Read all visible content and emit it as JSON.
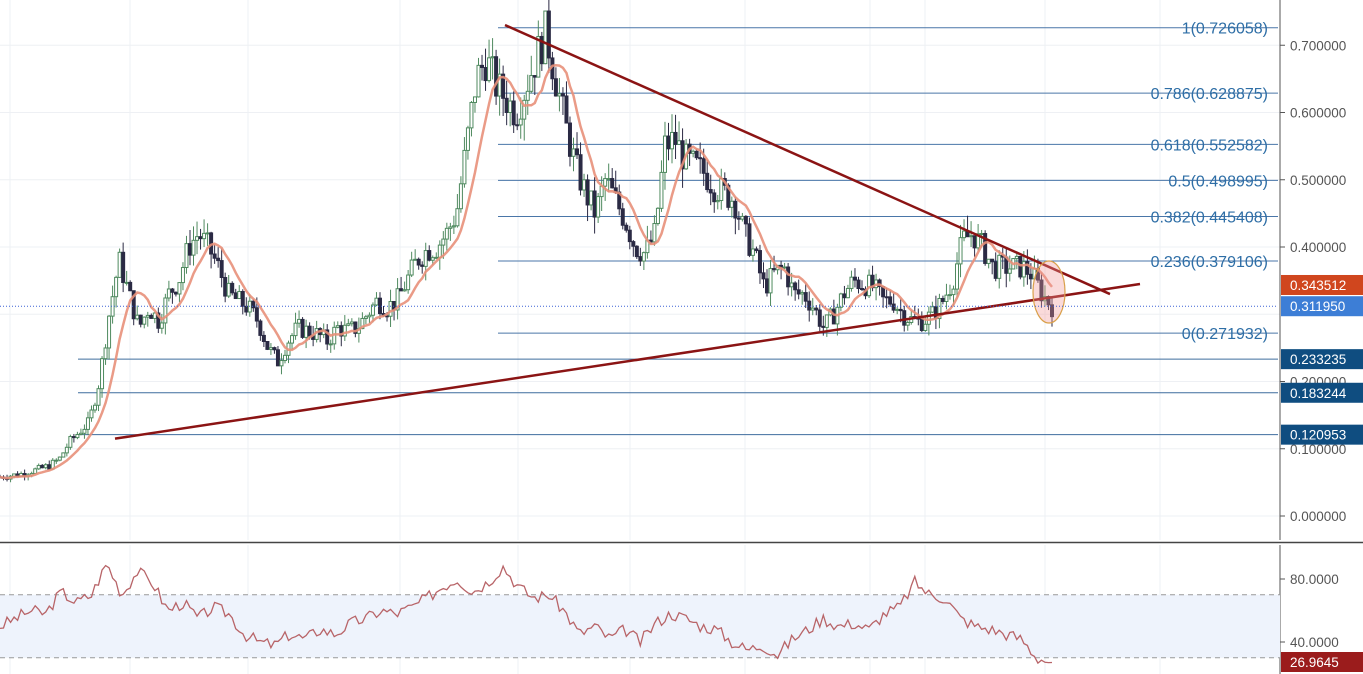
{
  "chart_data": [
    {
      "type": "candlestick",
      "title": "",
      "xlabel": "",
      "ylabel": "",
      "ylim": [
        -0.04,
        0.76
      ],
      "y_ticks": [
        "0.700000",
        "0.600000",
        "0.500000",
        "0.400000",
        "0.200000",
        "0.100000",
        "0.000000"
      ],
      "grid": true,
      "fibonacci_levels": [
        {
          "label": "1(0.726058)",
          "value": 0.726058
        },
        {
          "label": "0.786(0.628875)",
          "value": 0.628875
        },
        {
          "label": "0.618(0.552582)",
          "value": 0.552582
        },
        {
          "label": "0.5(0.498995)",
          "value": 0.498995
        },
        {
          "label": "0.382(0.445408)",
          "value": 0.445408
        },
        {
          "label": "0.236(0.379106)",
          "value": 0.379106
        },
        {
          "label": "0(0.271932)",
          "value": 0.271932
        }
      ],
      "support_levels": [
        {
          "label": "0.233235",
          "value": 0.233235
        },
        {
          "label": "0.183244",
          "value": 0.183244
        },
        {
          "label": "0.120953",
          "value": 0.120953
        }
      ],
      "price_badges": [
        {
          "label": "0.343512",
          "value": 0.343512,
          "color": "#d0461e"
        },
        {
          "label": "0.311950",
          "value": 0.31195,
          "color": "#3d7ed6"
        }
      ],
      "trendlines": [
        {
          "name": "descending",
          "points": [
            [
              0.0,
              0.73
            ],
            [
              1.0,
              0.33
            ]
          ]
        },
        {
          "name": "ascending",
          "points": [
            [
              0.0,
              0.115
            ],
            [
              1.0,
              0.345
            ]
          ]
        }
      ],
      "price_points": [
        0.058,
        0.06,
        0.062,
        0.066,
        0.07,
        0.075,
        0.085,
        0.11,
        0.125,
        0.14,
        0.2,
        0.3,
        0.38,
        0.33,
        0.28,
        0.31,
        0.29,
        0.33,
        0.35,
        0.4,
        0.42,
        0.4,
        0.37,
        0.33,
        0.32,
        0.31,
        0.29,
        0.25,
        0.23,
        0.26,
        0.28,
        0.275,
        0.27,
        0.26,
        0.28,
        0.275,
        0.28,
        0.3,
        0.32,
        0.31,
        0.32,
        0.35,
        0.38,
        0.395,
        0.4,
        0.42,
        0.45,
        0.55,
        0.65,
        0.68,
        0.64,
        0.62,
        0.6,
        0.64,
        0.68,
        0.72,
        0.65,
        0.58,
        0.52,
        0.48,
        0.45,
        0.5,
        0.47,
        0.44,
        0.4,
        0.39,
        0.42,
        0.55,
        0.56,
        0.53,
        0.52,
        0.51,
        0.49,
        0.48,
        0.47,
        0.42,
        0.39,
        0.34,
        0.36,
        0.37,
        0.33,
        0.33,
        0.31,
        0.28,
        0.3,
        0.33,
        0.35,
        0.345,
        0.34,
        0.32,
        0.32,
        0.3,
        0.29,
        0.29,
        0.3,
        0.32,
        0.35,
        0.41,
        0.42,
        0.4,
        0.37,
        0.37,
        0.37,
        0.37,
        0.36,
        0.33,
        0.312
      ],
      "moving_average_color": "#e8907a",
      "candle_up_color": "#4f8a5f",
      "candle_down_color": "#2b2a44"
    },
    {
      "type": "line",
      "title": "",
      "ylim": [
        20,
        100
      ],
      "y_ticks": [
        "80.0000",
        "40.0000"
      ],
      "band": [
        30,
        70
      ],
      "last_value_label": "26.9645",
      "last_value_color": "#9b1c1c",
      "line_color": "#b86468",
      "values": [
        50,
        55,
        60,
        58,
        72,
        65,
        70,
        90,
        70,
        85,
        78,
        60,
        65,
        55,
        62,
        58,
        45,
        40,
        38,
        45,
        42,
        48,
        45,
        52,
        55,
        60,
        58,
        62,
        68,
        75,
        80,
        72,
        78,
        88,
        75,
        68,
        70,
        60,
        45,
        50,
        42,
        48,
        40,
        52,
        58,
        55,
        50,
        48,
        40,
        35,
        38,
        32,
        42,
        48,
        55,
        50,
        52,
        48,
        58,
        62,
        78,
        70,
        68,
        55,
        50,
        48,
        45,
        42,
        30,
        27
      ]
    }
  ]
}
